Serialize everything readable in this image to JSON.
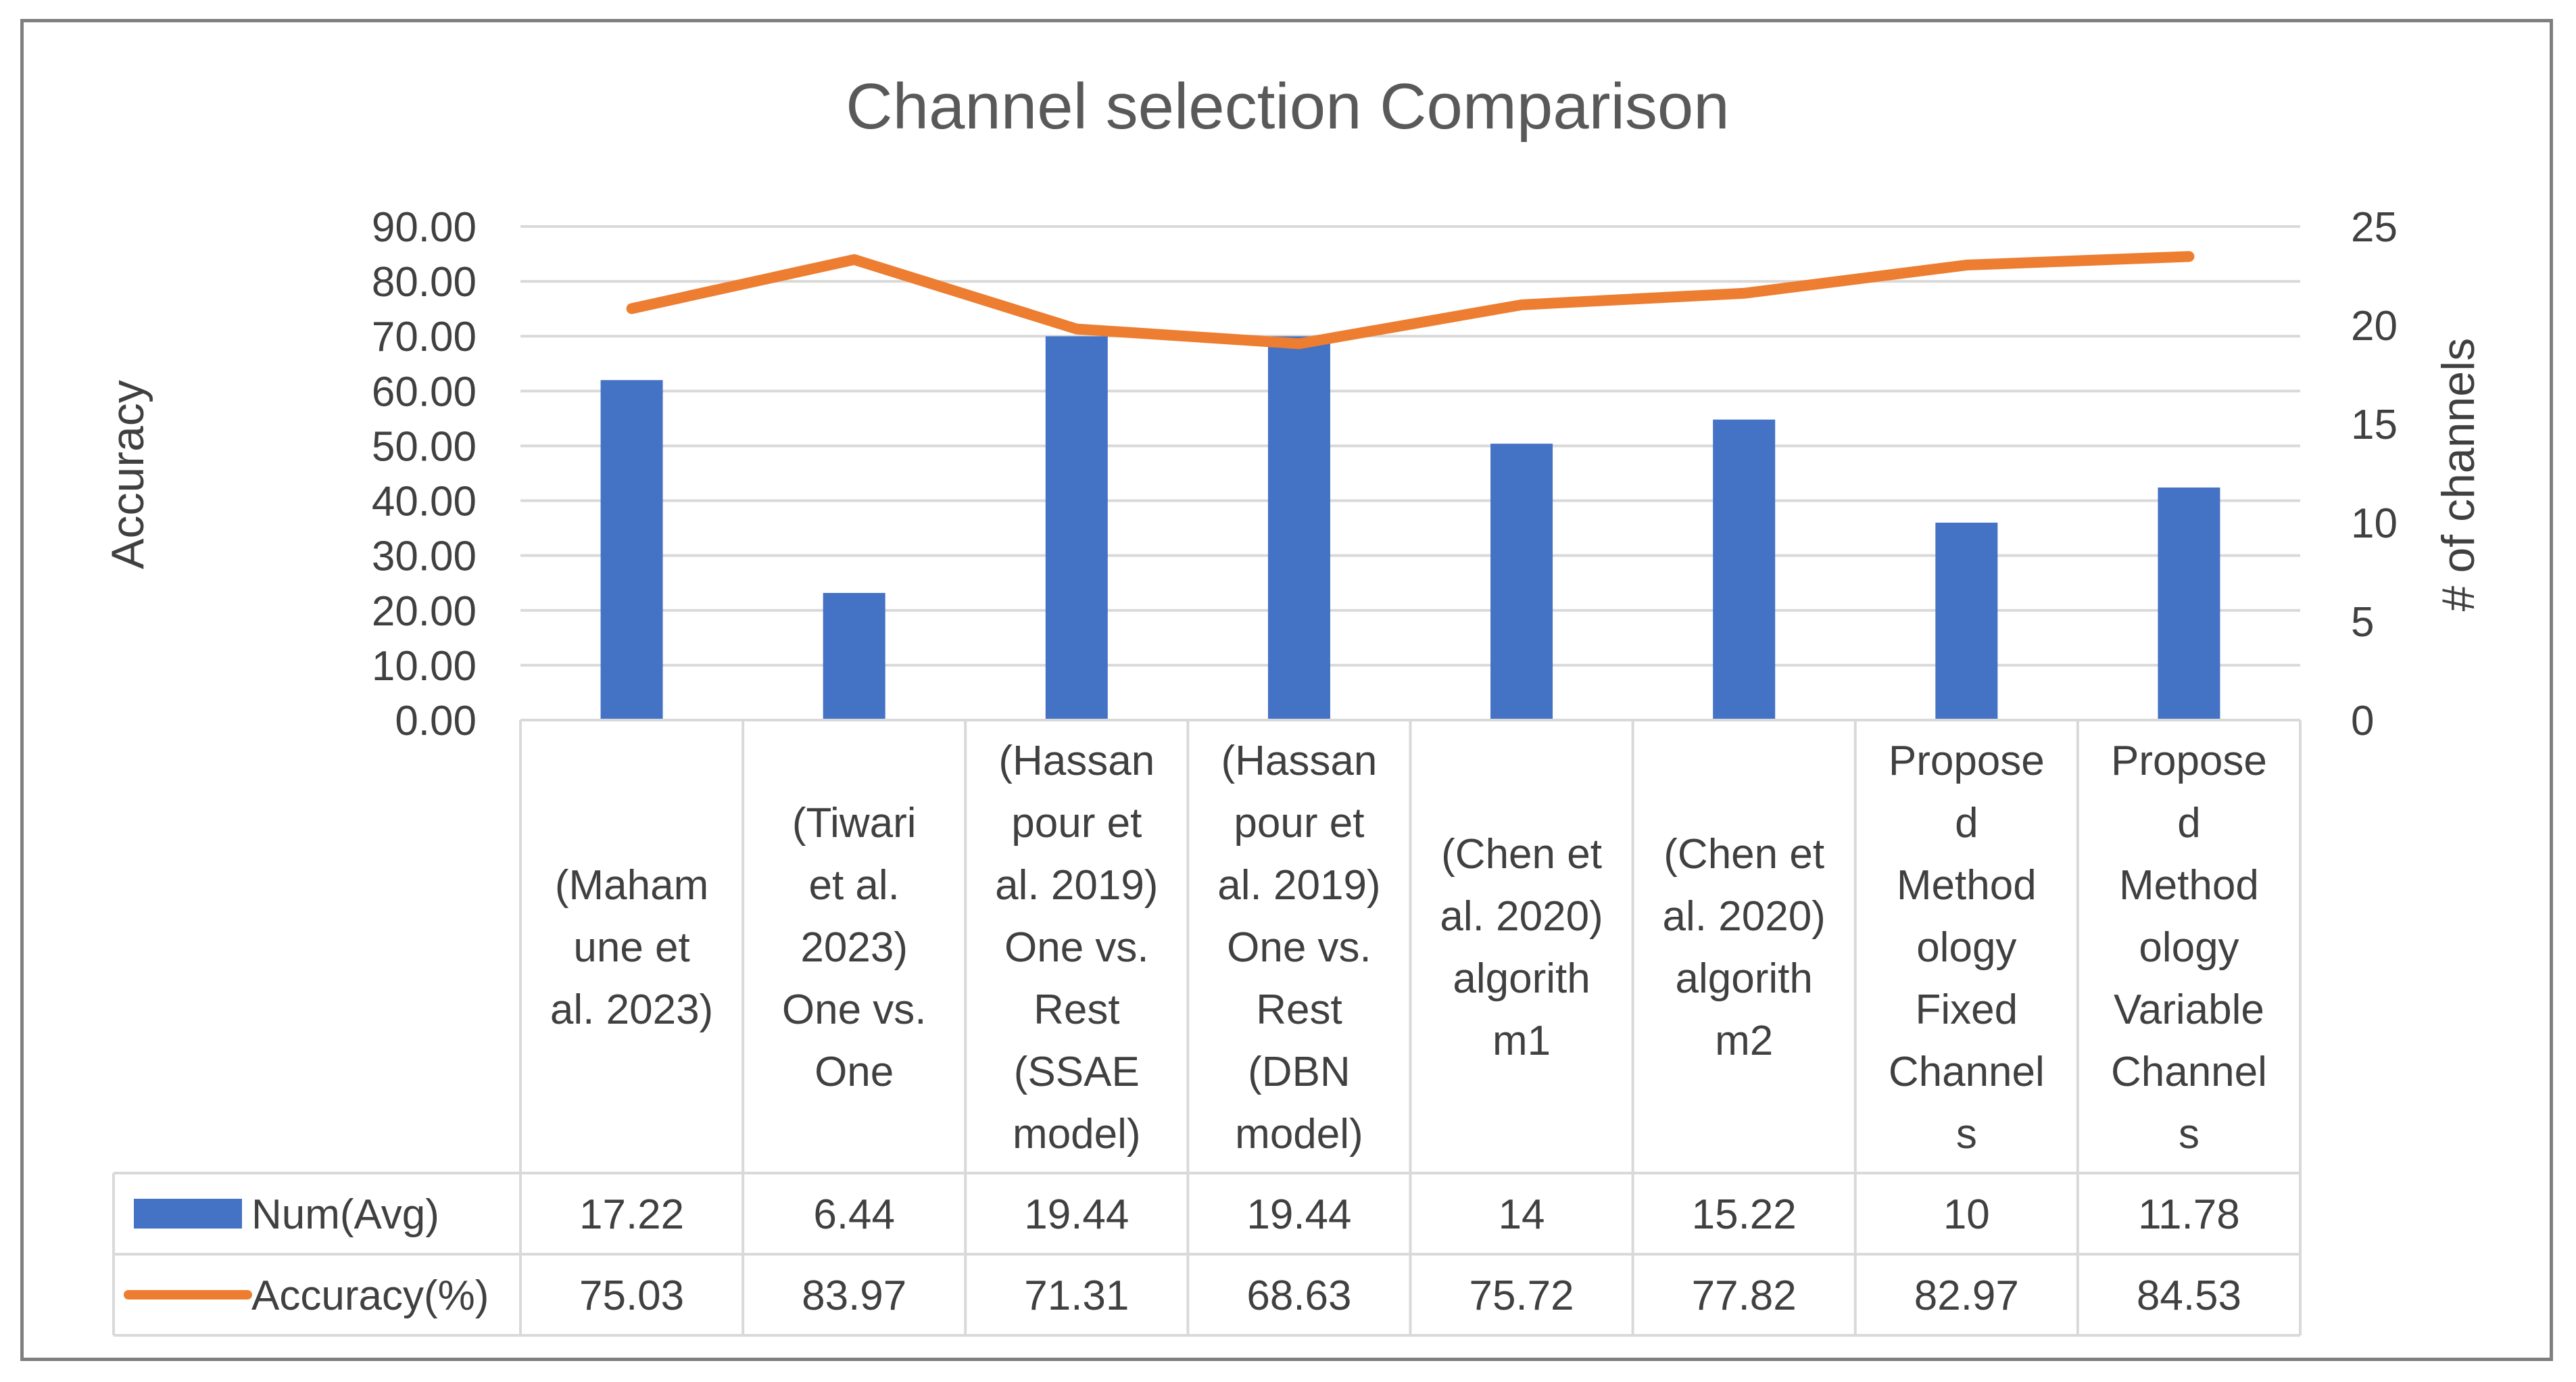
{
  "chart_data": {
    "type": "bar",
    "title": "Channel selection Comparison",
    "categories": [
      [
        "(Maham",
        "une et",
        "al. 2023)"
      ],
      [
        "(Tiwari",
        "et al.",
        "2023)",
        "One vs.",
        "One"
      ],
      [
        "(Hassan",
        "pour et",
        "al. 2019)",
        "One vs.",
        "Rest",
        "(SSAE",
        "model)"
      ],
      [
        "(Hassan",
        "pour et",
        "al. 2019)",
        "One vs.",
        "Rest",
        "(DBN",
        "model)"
      ],
      [
        "(Chen et",
        "al. 2020)",
        "algorith",
        "m1"
      ],
      [
        "(Chen et",
        "al. 2020)",
        "algorith",
        "m2"
      ],
      [
        "Propose",
        "d",
        "Method",
        "ology",
        "Fixed",
        "Channel",
        "s"
      ],
      [
        "Propose",
        "d",
        "Method",
        "ology",
        "Variable",
        "Channel",
        "s"
      ]
    ],
    "series": [
      {
        "name": "Num(Avg)",
        "kind": "bar",
        "axis": "right",
        "color": "#4472c4",
        "values": [
          17.22,
          6.44,
          19.44,
          19.44,
          14,
          15.22,
          10,
          11.78
        ],
        "labels": [
          "17.22",
          "6.44",
          "19.44",
          "19.44",
          "14",
          "15.22",
          "10",
          "11.78"
        ]
      },
      {
        "name": "Accuracy(%)",
        "kind": "line",
        "axis": "left",
        "color": "#ed7d31",
        "values": [
          75.03,
          83.97,
          71.31,
          68.63,
          75.72,
          77.82,
          82.97,
          84.53
        ],
        "labels": [
          "75.03",
          "83.97",
          "71.31",
          "68.63",
          "75.72",
          "77.82",
          "82.97",
          "84.53"
        ]
      }
    ],
    "ylabel": "Accuracy",
    "y2label": "# of channels",
    "ylim": [
      0,
      90
    ],
    "y2lim": [
      0,
      25
    ],
    "yticks": [
      "0.00",
      "10.00",
      "20.00",
      "30.00",
      "40.00",
      "50.00",
      "60.00",
      "70.00",
      "80.00",
      "90.00"
    ],
    "y2ticks": [
      "0",
      "5",
      "10",
      "15",
      "20",
      "25"
    ],
    "grid": true,
    "legend": "data-table"
  }
}
